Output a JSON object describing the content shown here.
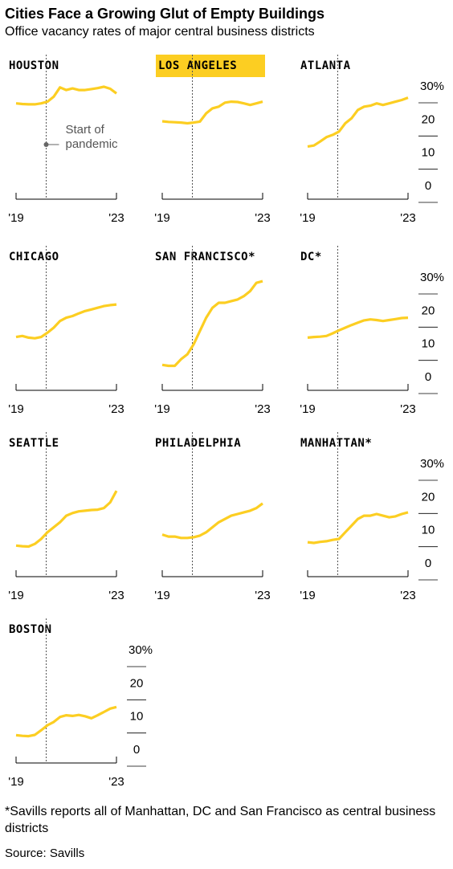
{
  "title": "Cities Face a Growing Glut of Empty Buildings",
  "subtitle": "Office vacancy rates of major central business districts",
  "chart_data": [
    {
      "type": "line",
      "title": "HOUSTON",
      "color": "#fcce22",
      "show_yaxis": false,
      "highlight": false,
      "x": [
        2019,
        2019.25,
        2019.5,
        2019.75,
        2020,
        2020.25,
        2020.5,
        2020.75,
        2021,
        2021.25,
        2021.5,
        2021.75,
        2022,
        2022.25,
        2022.5,
        2022.75,
        2023
      ],
      "values": [
        25,
        24.8,
        24.7,
        24.7,
        25,
        25.5,
        27,
        29.8,
        29,
        29.5,
        29,
        29,
        29.3,
        29.6,
        30,
        29.4,
        28
      ],
      "xlim": [
        2019,
        2023
      ],
      "xticks": [
        {
          "value": 2019,
          "label": "'19"
        },
        {
          "value": 2023,
          "label": "'23"
        }
      ],
      "ylim": [
        0,
        30
      ],
      "yticks": [
        0,
        10,
        20,
        {
          "value": 30,
          "label": "30%"
        }
      ],
      "annotation": {
        "x": 2020.2,
        "lines": [
          "Start of",
          "pandemic"
        ]
      }
    },
    {
      "type": "line",
      "title": "LOS ANGELES",
      "color": "#fcce22",
      "show_yaxis": false,
      "highlight": true,
      "x": [
        2019,
        2019.25,
        2019.5,
        2019.75,
        2020,
        2020.25,
        2020.5,
        2020.75,
        2021,
        2021.25,
        2021.5,
        2021.75,
        2022,
        2022.25,
        2022.5,
        2022.75,
        2023
      ],
      "values": [
        19.6,
        19.4,
        19.3,
        19.2,
        19,
        19.2,
        19.5,
        22,
        23.5,
        24,
        25.2,
        25.5,
        25.4,
        25,
        24.5,
        25,
        25.5
      ],
      "xlim": [
        2019,
        2023
      ],
      "xticks": [
        {
          "value": 2019,
          "label": "'19"
        },
        {
          "value": 2023,
          "label": "'23"
        }
      ],
      "ylim": [
        0,
        30
      ],
      "yticks": [
        0,
        10,
        20,
        {
          "value": 30,
          "label": "30%"
        }
      ],
      "pandemic_x": 2020.2
    },
    {
      "type": "line",
      "title": "ATLANTA",
      "color": "#fcce22",
      "show_yaxis": true,
      "highlight": false,
      "x": [
        2019,
        2019.25,
        2019.5,
        2019.75,
        2020,
        2020.25,
        2020.5,
        2020.75,
        2021,
        2021.25,
        2021.5,
        2021.75,
        2022,
        2022.25,
        2022.5,
        2022.75,
        2023
      ],
      "values": [
        12,
        12.3,
        13.5,
        14.8,
        15.5,
        16.5,
        19,
        20.5,
        23,
        24,
        24.3,
        25,
        24.5,
        25,
        25.5,
        26,
        26.7
      ],
      "xlim": [
        2019,
        2023
      ],
      "xticks": [
        {
          "value": 2019,
          "label": "'19"
        },
        {
          "value": 2023,
          "label": "'23"
        }
      ],
      "ylim": [
        0,
        30
      ],
      "yticks": [
        0,
        10,
        20,
        {
          "value": 30,
          "label": "30%"
        }
      ],
      "pandemic_x": 2020.2
    },
    {
      "type": "line",
      "title": "CHICAGO",
      "color": "#fcce22",
      "show_yaxis": false,
      "highlight": false,
      "x": [
        2019,
        2019.25,
        2019.5,
        2019.75,
        2020,
        2020.25,
        2020.5,
        2020.75,
        2021,
        2021.25,
        2021.5,
        2021.75,
        2022,
        2022.25,
        2022.5,
        2022.75,
        2023
      ],
      "values": [
        12.2,
        12.5,
        12,
        11.8,
        12.2,
        13.5,
        15,
        17,
        18,
        18.5,
        19.3,
        20,
        20.5,
        21,
        21.5,
        21.8,
        22
      ],
      "xlim": [
        2019,
        2023
      ],
      "xticks": [
        {
          "value": 2019,
          "label": "'19"
        },
        {
          "value": 2023,
          "label": "'23"
        }
      ],
      "ylim": [
        0,
        30
      ],
      "yticks": [
        0,
        10,
        20,
        {
          "value": 30,
          "label": "30%"
        }
      ],
      "pandemic_x": 2020.2
    },
    {
      "type": "line",
      "title": "SAN FRANCISCO*",
      "color": "#fcce22",
      "show_yaxis": false,
      "highlight": false,
      "x": [
        2019,
        2019.25,
        2019.5,
        2019.75,
        2020,
        2020.25,
        2020.5,
        2020.75,
        2021,
        2021.25,
        2021.5,
        2021.75,
        2022,
        2022.25,
        2022.5,
        2022.75,
        2023
      ],
      "values": [
        3.8,
        3.5,
        3.5,
        5.5,
        7,
        10,
        14,
        18,
        21,
        22.5,
        22.5,
        23,
        23.5,
        24.5,
        26,
        28.5,
        29
      ],
      "xlim": [
        2019,
        2023
      ],
      "xticks": [
        {
          "value": 2019,
          "label": "'19"
        },
        {
          "value": 2023,
          "label": "'23"
        }
      ],
      "ylim": [
        0,
        30
      ],
      "yticks": [
        0,
        10,
        20,
        {
          "value": 30,
          "label": "30%"
        }
      ],
      "pandemic_x": 2020.2
    },
    {
      "type": "line",
      "title": "DC*",
      "color": "#fcce22",
      "show_yaxis": true,
      "highlight": false,
      "x": [
        2019,
        2019.25,
        2019.5,
        2019.75,
        2020,
        2020.25,
        2020.5,
        2020.75,
        2021,
        2021.25,
        2021.5,
        2021.75,
        2022,
        2022.25,
        2022.5,
        2022.75,
        2023
      ],
      "values": [
        12,
        12.2,
        12.3,
        12.5,
        13.3,
        14.2,
        15,
        15.8,
        16.5,
        17.2,
        17.5,
        17.3,
        17,
        17.3,
        17.6,
        17.9,
        18
      ],
      "xlim": [
        2019,
        2023
      ],
      "xticks": [
        {
          "value": 2019,
          "label": "'19"
        },
        {
          "value": 2023,
          "label": "'23"
        }
      ],
      "ylim": [
        0,
        30
      ],
      "yticks": [
        0,
        10,
        20,
        {
          "value": 30,
          "label": "30%"
        }
      ],
      "pandemic_x": 2020.2
    },
    {
      "type": "line",
      "title": "SEATTLE",
      "color": "#fcce22",
      "show_yaxis": false,
      "highlight": false,
      "x": [
        2019,
        2019.25,
        2019.5,
        2019.75,
        2020,
        2020.25,
        2020.5,
        2020.75,
        2021,
        2021.25,
        2021.5,
        2021.75,
        2022,
        2022.25,
        2022.5,
        2022.75,
        2023
      ],
      "values": [
        5.5,
        5.3,
        5.2,
        6,
        7.5,
        9.5,
        11,
        12.5,
        14.5,
        15.3,
        15.8,
        16,
        16.2,
        16.3,
        16.8,
        18.5,
        22
      ],
      "xlim": [
        2019,
        2023
      ],
      "xticks": [
        {
          "value": 2019,
          "label": "'19"
        },
        {
          "value": 2023,
          "label": "'23"
        }
      ],
      "ylim": [
        0,
        30
      ],
      "yticks": [
        0,
        10,
        20,
        {
          "value": 30,
          "label": "30%"
        }
      ],
      "pandemic_x": 2020.2
    },
    {
      "type": "line",
      "title": "PHILADELPHIA",
      "color": "#fcce22",
      "show_yaxis": false,
      "highlight": false,
      "x": [
        2019,
        2019.25,
        2019.5,
        2019.75,
        2020,
        2020.25,
        2020.5,
        2020.75,
        2021,
        2021.25,
        2021.5,
        2021.75,
        2022,
        2022.25,
        2022.5,
        2022.75,
        2023
      ],
      "values": [
        8.8,
        8.2,
        8.2,
        7.8,
        7.8,
        8,
        8.5,
        9.5,
        11,
        12.5,
        13.5,
        14.5,
        15,
        15.5,
        16,
        16.8,
        18.2
      ],
      "xlim": [
        2019,
        2023
      ],
      "xticks": [
        {
          "value": 2019,
          "label": "'19"
        },
        {
          "value": 2023,
          "label": "'23"
        }
      ],
      "ylim": [
        0,
        30
      ],
      "yticks": [
        0,
        10,
        20,
        {
          "value": 30,
          "label": "30%"
        }
      ],
      "pandemic_x": 2020.2
    },
    {
      "type": "line",
      "title": "MANHATTAN*",
      "color": "#fcce22",
      "show_yaxis": true,
      "highlight": false,
      "x": [
        2019,
        2019.25,
        2019.5,
        2019.75,
        2020,
        2020.25,
        2020.5,
        2020.75,
        2021,
        2021.25,
        2021.5,
        2021.75,
        2022,
        2022.25,
        2022.5,
        2022.75,
        2023
      ],
      "values": [
        6.5,
        6.3,
        6.6,
        6.8,
        7.2,
        7.5,
        9.5,
        11.5,
        13.5,
        14.5,
        14.5,
        15,
        14.5,
        14,
        14.3,
        15,
        15.5
      ],
      "xlim": [
        2019,
        2023
      ],
      "xticks": [
        {
          "value": 2019,
          "label": "'19"
        },
        {
          "value": 2023,
          "label": "'23"
        }
      ],
      "ylim": [
        0,
        30
      ],
      "yticks": [
        0,
        10,
        20,
        {
          "value": 30,
          "label": "30%"
        }
      ],
      "pandemic_x": 2020.2
    },
    {
      "type": "line",
      "title": "BOSTON",
      "color": "#fcce22",
      "show_yaxis": true,
      "highlight": false,
      "x": [
        2019,
        2019.25,
        2019.5,
        2019.75,
        2020,
        2020.25,
        2020.5,
        2020.75,
        2021,
        2021.25,
        2021.5,
        2021.75,
        2022,
        2022.25,
        2022.5,
        2022.75,
        2023
      ],
      "values": [
        4.5,
        4.3,
        4.2,
        4.6,
        6,
        7.5,
        8.5,
        10,
        10.5,
        10.3,
        10.6,
        10.2,
        9.6,
        10.5,
        11.5,
        12.5,
        13
      ],
      "xlim": [
        2019,
        2023
      ],
      "xticks": [
        {
          "value": 2019,
          "label": "'19"
        },
        {
          "value": 2023,
          "label": "'23"
        }
      ],
      "ylim": [
        0,
        30
      ],
      "yticks": [
        0,
        10,
        20,
        {
          "value": 30,
          "label": "30%"
        }
      ],
      "pandemic_x": 2020.2
    }
  ],
  "footnote": "*Savills reports all of Manhattan, DC and San Francisco as central business districts",
  "source": "Source: Savills"
}
